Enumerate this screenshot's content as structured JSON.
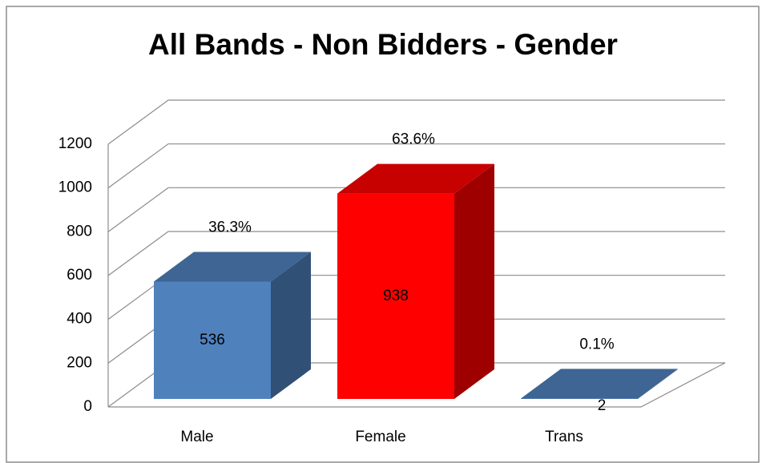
{
  "chart_data": {
    "type": "bar3d",
    "title": "All Bands - Non Bidders - Gender",
    "categories": [
      "Male",
      "Female",
      "Trans"
    ],
    "values": [
      536,
      938,
      2
    ],
    "percent_labels": [
      "36.3%",
      "63.6%",
      "0.1%"
    ],
    "colors": [
      "#4f81bd",
      "#ff0000",
      "#4f81bd"
    ],
    "ylim": [
      0,
      1200
    ],
    "yticks": [
      0,
      200,
      400,
      600,
      800,
      1000,
      1200
    ],
    "grid": true
  }
}
